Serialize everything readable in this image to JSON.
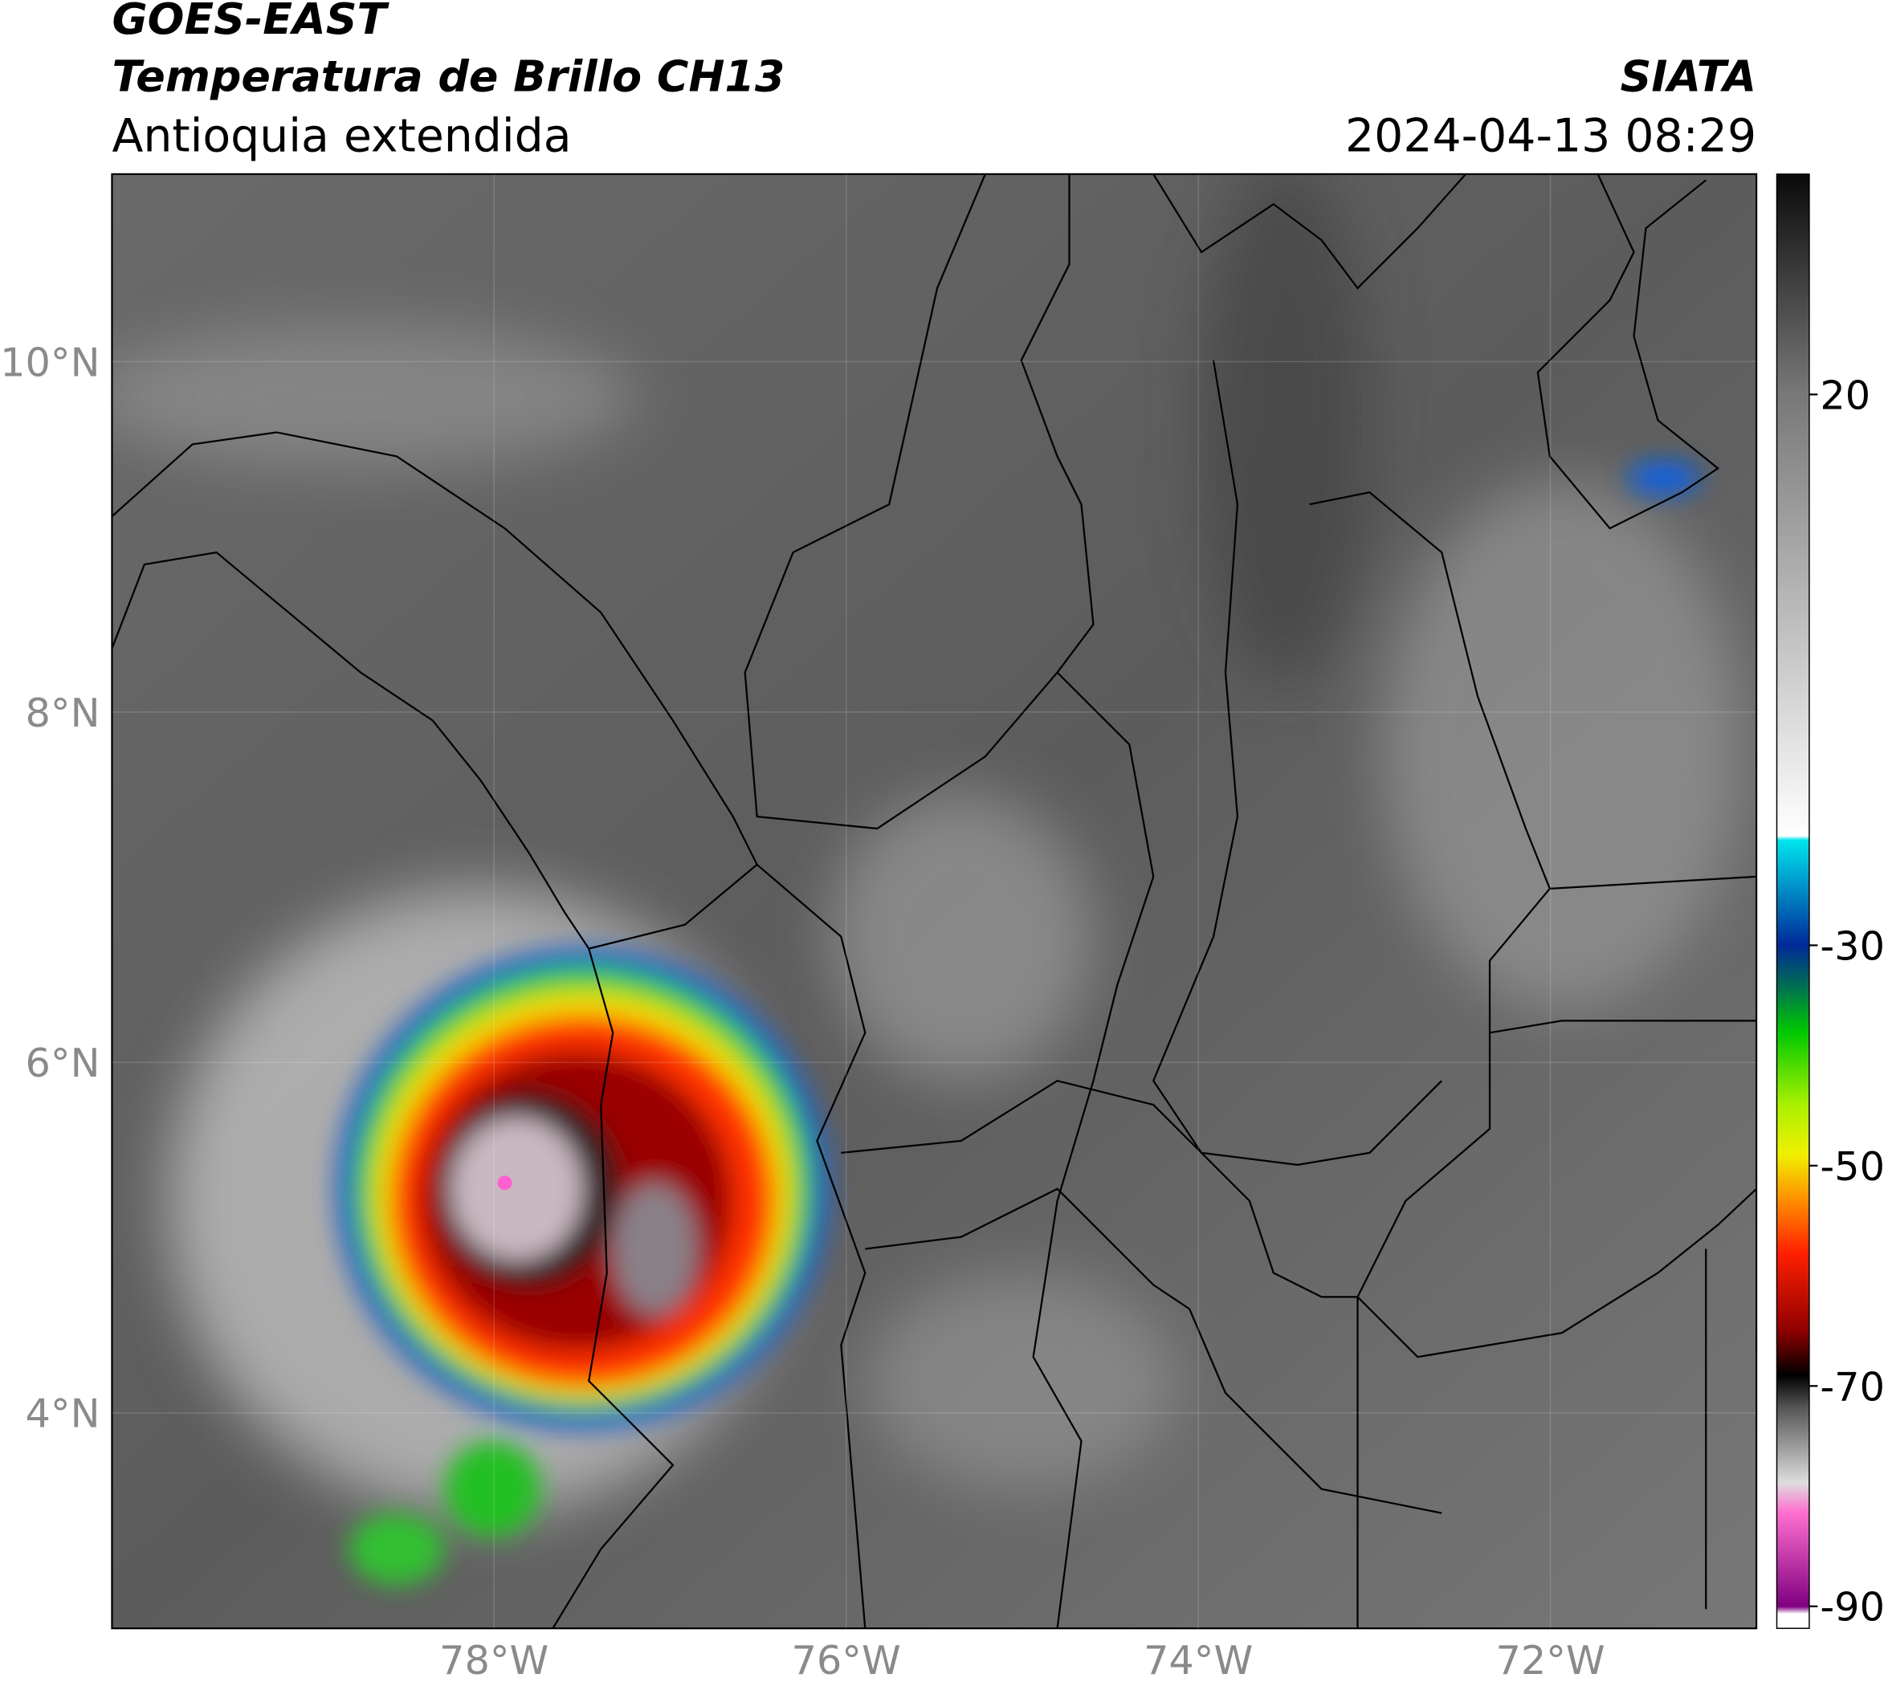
{
  "chart_data": {
    "type": "map",
    "title": "GOES-EAST",
    "subtitle": "Temperatura de Brillo CH13",
    "region": "Antioquia extendida",
    "source": "SIATA",
    "datetime": "2024-04-13 08:29",
    "xlim": [
      -80.17,
      -70.83
    ],
    "ylim": [
      2.77,
      11.07
    ],
    "xticks": [
      {
        "value": -78,
        "label": "78°W"
      },
      {
        "value": -76,
        "label": "76°W"
      },
      {
        "value": -74,
        "label": "74°W"
      },
      {
        "value": -72,
        "label": "72°W"
      }
    ],
    "yticks": [
      {
        "value": 4,
        "label": "4°N"
      },
      {
        "value": 6,
        "label": "6°N"
      },
      {
        "value": 8,
        "label": "8°N"
      },
      {
        "value": 10,
        "label": "10°N"
      }
    ],
    "grid": true,
    "colorbar": {
      "lim": [
        -92,
        40
      ],
      "ticks": [
        20,
        -30,
        -50,
        -70,
        -90
      ]
    }
  }
}
